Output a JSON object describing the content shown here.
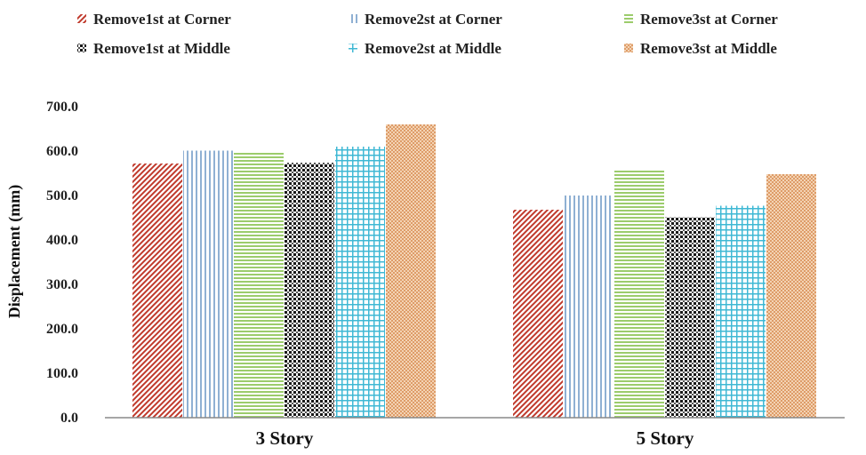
{
  "chart_data": {
    "type": "bar",
    "title": "",
    "xlabel": "",
    "ylabel": "Displacement (mm)",
    "ylim": [
      0,
      700
    ],
    "yticks": [
      "0.0",
      "100.0",
      "200.0",
      "300.0",
      "400.0",
      "500.0",
      "600.0",
      "700.0"
    ],
    "categories": [
      "3 Story",
      "5 Story"
    ],
    "legend_position": "top",
    "grid": false,
    "series": [
      {
        "name": "Remove1st at Corner",
        "values": [
          572,
          468
        ],
        "color": "#c0392b",
        "pattern": "diagonal-hatch"
      },
      {
        "name": "Remove2st at Corner",
        "values": [
          601,
          500
        ],
        "color": "#7fa3c9",
        "pattern": "vertical-lines"
      },
      {
        "name": "Remove3st at Corner",
        "values": [
          596,
          560
        ],
        "color": "#8fbf5f",
        "pattern": "horizontal-lines"
      },
      {
        "name": "Remove1st at Middle",
        "values": [
          574,
          451
        ],
        "color": "#222222",
        "pattern": "checker"
      },
      {
        "name": "Remove2st at Middle",
        "values": [
          610,
          477
        ],
        "color": "#3fb8d4",
        "pattern": "grid"
      },
      {
        "name": "Remove3st at Middle",
        "values": [
          660,
          548
        ],
        "color": "#e0a370",
        "pattern": "dots"
      }
    ]
  }
}
